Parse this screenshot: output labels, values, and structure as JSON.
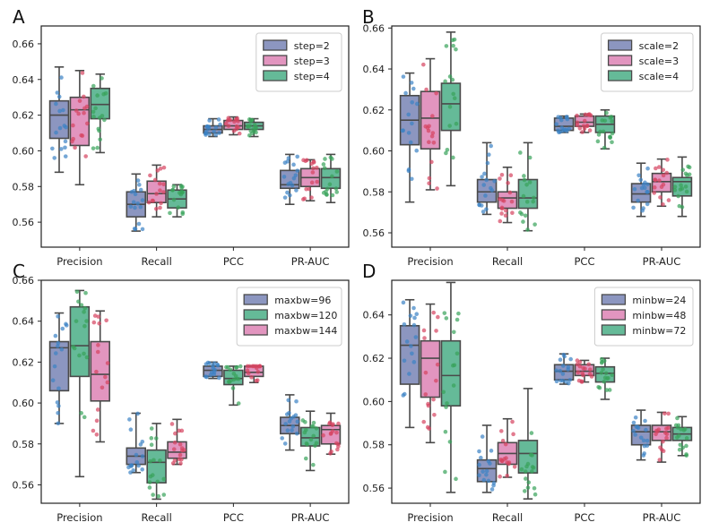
{
  "chart_data": [
    {
      "panel": "A",
      "type": "box",
      "categories": [
        "Precision",
        "Recall",
        "PCC",
        "PR-AUC"
      ],
      "yticks": [
        "0.56",
        "0.58",
        "0.60",
        "0.62",
        "0.64",
        "0.66"
      ],
      "ylim": [
        0.546,
        0.67
      ],
      "legend_position": "top-right",
      "series": [
        {
          "name": "step=2",
          "color": "#8c96c0",
          "point_color": "#3a82c4",
          "boxes": [
            {
              "min": 0.588,
              "q1": 0.607,
              "median": 0.62,
              "q3": 0.628,
              "max": 0.647
            },
            {
              "min": 0.555,
              "q1": 0.563,
              "median": 0.57,
              "q3": 0.577,
              "max": 0.587
            },
            {
              "min": 0.608,
              "q1": 0.61,
              "median": 0.612,
              "q3": 0.614,
              "max": 0.618
            },
            {
              "min": 0.57,
              "q1": 0.579,
              "median": 0.581,
              "q3": 0.589,
              "max": 0.598
            }
          ]
        },
        {
          "name": "step=3",
          "color": "#e295bf",
          "point_color": "#d6435f",
          "boxes": [
            {
              "min": 0.581,
              "q1": 0.603,
              "median": 0.623,
              "q3": 0.63,
              "max": 0.645
            },
            {
              "min": 0.563,
              "q1": 0.571,
              "median": 0.576,
              "q3": 0.583,
              "max": 0.592
            },
            {
              "min": 0.609,
              "q1": 0.612,
              "median": 0.614,
              "q3": 0.617,
              "max": 0.619
            },
            {
              "min": 0.572,
              "q1": 0.58,
              "median": 0.585,
              "q3": 0.59,
              "max": 0.595
            }
          ]
        },
        {
          "name": "step=4",
          "color": "#65ba98",
          "point_color": "#37a35a",
          "boxes": [
            {
              "min": 0.599,
              "q1": 0.618,
              "median": 0.626,
              "q3": 0.635,
              "max": 0.643
            },
            {
              "min": 0.563,
              "q1": 0.568,
              "median": 0.573,
              "q3": 0.578,
              "max": 0.581
            },
            {
              "min": 0.608,
              "q1": 0.612,
              "median": 0.614,
              "q3": 0.616,
              "max": 0.618
            },
            {
              "min": 0.571,
              "q1": 0.579,
              "median": 0.585,
              "q3": 0.59,
              "max": 0.598
            }
          ]
        }
      ]
    },
    {
      "panel": "B",
      "type": "box",
      "categories": [
        "Precision",
        "Recall",
        "PCC",
        "PR-AUC"
      ],
      "yticks": [
        "0.56",
        "0.58",
        "0.60",
        "0.62",
        "0.64",
        "0.66"
      ],
      "ylim": [
        0.553,
        0.661
      ],
      "legend_position": "top-right",
      "series": [
        {
          "name": "scale=2",
          "color": "#8c96c0",
          "point_color": "#3a82c4",
          "boxes": [
            {
              "min": 0.575,
              "q1": 0.603,
              "median": 0.615,
              "q3": 0.627,
              "max": 0.638
            },
            {
              "min": 0.569,
              "q1": 0.575,
              "median": 0.58,
              "q3": 0.586,
              "max": 0.604
            },
            {
              "min": 0.609,
              "q1": 0.61,
              "median": 0.612,
              "q3": 0.616,
              "max": 0.617
            },
            {
              "min": 0.568,
              "q1": 0.575,
              "median": 0.579,
              "q3": 0.584,
              "max": 0.594
            }
          ]
        },
        {
          "name": "scale=3",
          "color": "#e295bf",
          "point_color": "#d6435f",
          "boxes": [
            {
              "min": 0.581,
              "q1": 0.601,
              "median": 0.616,
              "q3": 0.629,
              "max": 0.645
            },
            {
              "min": 0.565,
              "q1": 0.572,
              "median": 0.577,
              "q3": 0.58,
              "max": 0.592
            },
            {
              "min": 0.609,
              "q1": 0.612,
              "median": 0.614,
              "q3": 0.617,
              "max": 0.618
            },
            {
              "min": 0.573,
              "q1": 0.58,
              "median": 0.585,
              "q3": 0.589,
              "max": 0.596
            }
          ]
        },
        {
          "name": "scale=4",
          "color": "#65ba98",
          "point_color": "#37a35a",
          "boxes": [
            {
              "min": 0.583,
              "q1": 0.61,
              "median": 0.623,
              "q3": 0.633,
              "max": 0.658
            },
            {
              "min": 0.561,
              "q1": 0.572,
              "median": 0.577,
              "q3": 0.586,
              "max": 0.604
            },
            {
              "min": 0.601,
              "q1": 0.609,
              "median": 0.613,
              "q3": 0.617,
              "max": 0.62
            },
            {
              "min": 0.568,
              "q1": 0.578,
              "median": 0.585,
              "q3": 0.587,
              "max": 0.597
            }
          ]
        }
      ]
    },
    {
      "panel": "C",
      "type": "box",
      "categories": [
        "Precision",
        "Recall",
        "PCC",
        "PR-AUC"
      ],
      "yticks": [
        "0.56",
        "0.58",
        "0.60",
        "0.62",
        "0.64",
        "0.66"
      ],
      "ylim": [
        0.551,
        0.66
      ],
      "legend_position": "top-right",
      "series": [
        {
          "name": "maxbw=96",
          "color": "#8c96c0",
          "point_color": "#3a82c4",
          "boxes": [
            {
              "min": 0.59,
              "q1": 0.606,
              "median": 0.627,
              "q3": 0.63,
              "max": 0.644
            },
            {
              "min": 0.566,
              "q1": 0.57,
              "median": 0.574,
              "q3": 0.578,
              "max": 0.595
            },
            {
              "min": 0.612,
              "q1": 0.613,
              "median": 0.616,
              "q3": 0.618,
              "max": 0.62
            },
            {
              "min": 0.577,
              "q1": 0.585,
              "median": 0.589,
              "q3": 0.593,
              "max": 0.604
            }
          ]
        },
        {
          "name": "maxbw=120",
          "color": "#65ba98",
          "point_color": "#37a35a",
          "boxes": [
            {
              "min": 0.564,
              "q1": 0.613,
              "median": 0.628,
              "q3": 0.647,
              "max": 0.655
            },
            {
              "min": 0.553,
              "q1": 0.561,
              "median": 0.571,
              "q3": 0.577,
              "max": 0.59
            },
            {
              "min": 0.599,
              "q1": 0.609,
              "median": 0.612,
              "q3": 0.616,
              "max": 0.618
            },
            {
              "min": 0.567,
              "q1": 0.579,
              "median": 0.583,
              "q3": 0.588,
              "max": 0.596
            }
          ]
        },
        {
          "name": "maxbw=144",
          "color": "#e295bf",
          "point_color": "#d6435f",
          "boxes": [
            {
              "min": 0.581,
              "q1": 0.601,
              "median": 0.614,
              "q3": 0.63,
              "max": 0.645
            },
            {
              "min": 0.57,
              "q1": 0.573,
              "median": 0.576,
              "q3": 0.581,
              "max": 0.592
            },
            {
              "min": 0.61,
              "q1": 0.613,
              "median": 0.615,
              "q3": 0.618,
              "max": 0.618
            },
            {
              "min": 0.575,
              "q1": 0.58,
              "median": 0.587,
              "q3": 0.589,
              "max": 0.595
            }
          ]
        }
      ]
    },
    {
      "panel": "D",
      "type": "box",
      "categories": [
        "Precision",
        "Recall",
        "PCC",
        "PR-AUC"
      ],
      "yticks": [
        "0.56",
        "0.58",
        "0.60",
        "0.62",
        "0.64"
      ],
      "ylim": [
        0.553,
        0.656
      ],
      "legend_position": "top-right",
      "series": [
        {
          "name": "minbw=24",
          "color": "#8c96c0",
          "point_color": "#3a82c4",
          "boxes": [
            {
              "min": 0.588,
              "q1": 0.608,
              "median": 0.626,
              "q3": 0.635,
              "max": 0.647
            },
            {
              "min": 0.558,
              "q1": 0.563,
              "median": 0.569,
              "q3": 0.573,
              "max": 0.589
            },
            {
              "min": 0.608,
              "q1": 0.61,
              "median": 0.614,
              "q3": 0.617,
              "max": 0.622
            },
            {
              "min": 0.573,
              "q1": 0.58,
              "median": 0.586,
              "q3": 0.589,
              "max": 0.596
            }
          ]
        },
        {
          "name": "minbw=48",
          "color": "#e295bf",
          "point_color": "#d6435f",
          "boxes": [
            {
              "min": 0.581,
              "q1": 0.602,
              "median": 0.62,
              "q3": 0.628,
              "max": 0.645
            },
            {
              "min": 0.565,
              "q1": 0.571,
              "median": 0.576,
              "q3": 0.581,
              "max": 0.592
            },
            {
              "min": 0.609,
              "q1": 0.612,
              "median": 0.614,
              "q3": 0.617,
              "max": 0.619
            },
            {
              "min": 0.572,
              "q1": 0.582,
              "median": 0.586,
              "q3": 0.589,
              "max": 0.595
            }
          ]
        },
        {
          "name": "minbw=72",
          "color": "#65ba98",
          "point_color": "#37a35a",
          "boxes": [
            {
              "min": 0.558,
              "q1": 0.598,
              "median": 0.612,
              "q3": 0.628,
              "max": 0.655
            },
            {
              "min": 0.555,
              "q1": 0.567,
              "median": 0.576,
              "q3": 0.582,
              "max": 0.606
            },
            {
              "min": 0.601,
              "q1": 0.609,
              "median": 0.613,
              "q3": 0.616,
              "max": 0.62
            },
            {
              "min": 0.575,
              "q1": 0.582,
              "median": 0.585,
              "q3": 0.588,
              "max": 0.593
            }
          ]
        }
      ]
    }
  ]
}
